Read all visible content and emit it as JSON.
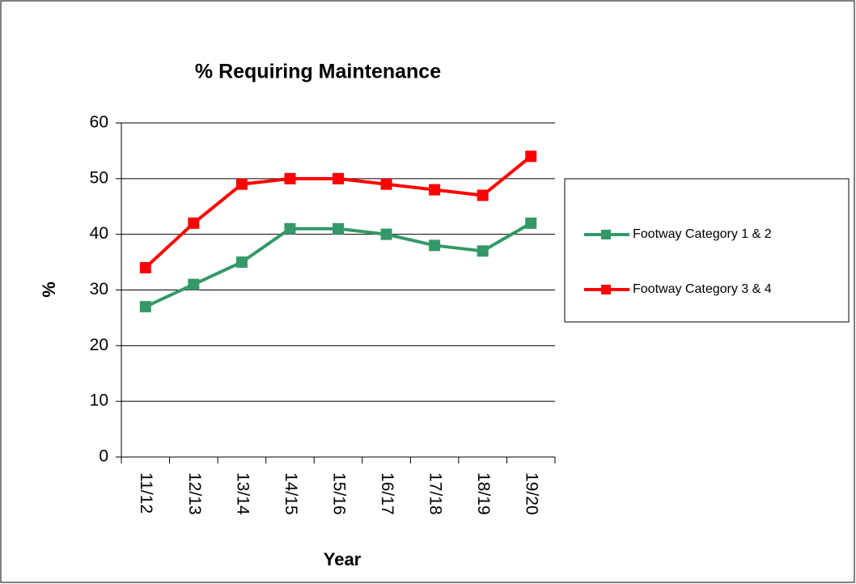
{
  "chart_data": {
    "type": "line",
    "title": "% Requiring Maintenance",
    "x_label": "Year",
    "y_label": "%",
    "categories": [
      "11/12",
      "12/13",
      "13/14",
      "14/15",
      "15/16",
      "16/17",
      "17/18",
      "18/19",
      "19/20"
    ],
    "series": [
      {
        "name": "Footway Category 1 & 2",
        "color": "#339966",
        "values": [
          27,
          31,
          35,
          41,
          41,
          40,
          38,
          37,
          42
        ]
      },
      {
        "name": "Footway Category 3 & 4",
        "color": "#ff0000",
        "values": [
          34,
          42,
          49,
          50,
          50,
          49,
          48,
          47,
          54
        ]
      }
    ],
    "ylim": [
      0,
      60
    ],
    "yticks": [
      0,
      10,
      20,
      30,
      40,
      50,
      60
    ],
    "grid": true,
    "legend": "right"
  }
}
